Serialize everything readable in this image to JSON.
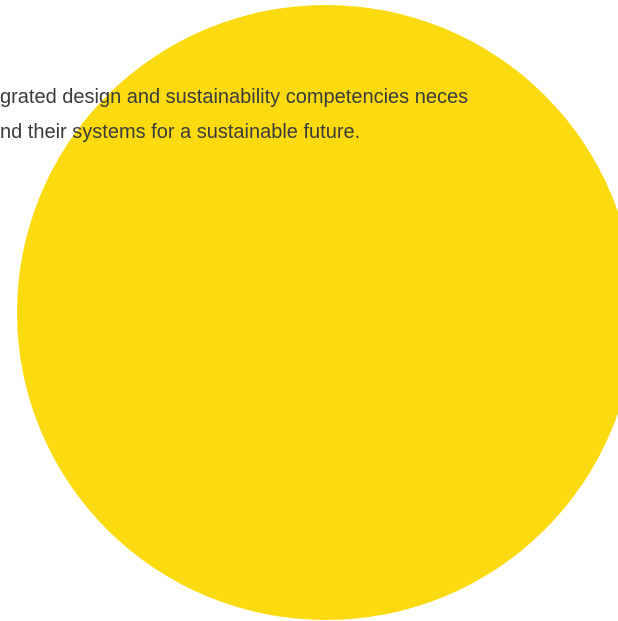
{
  "body_text": {
    "line_1": "grated design and sustainability competencies neces",
    "line_2": "nd their systems for a sustainable future."
  },
  "colors": {
    "accent_circle": "#FBDB10",
    "text": "#3a3a3a",
    "background": "#ffffff"
  }
}
